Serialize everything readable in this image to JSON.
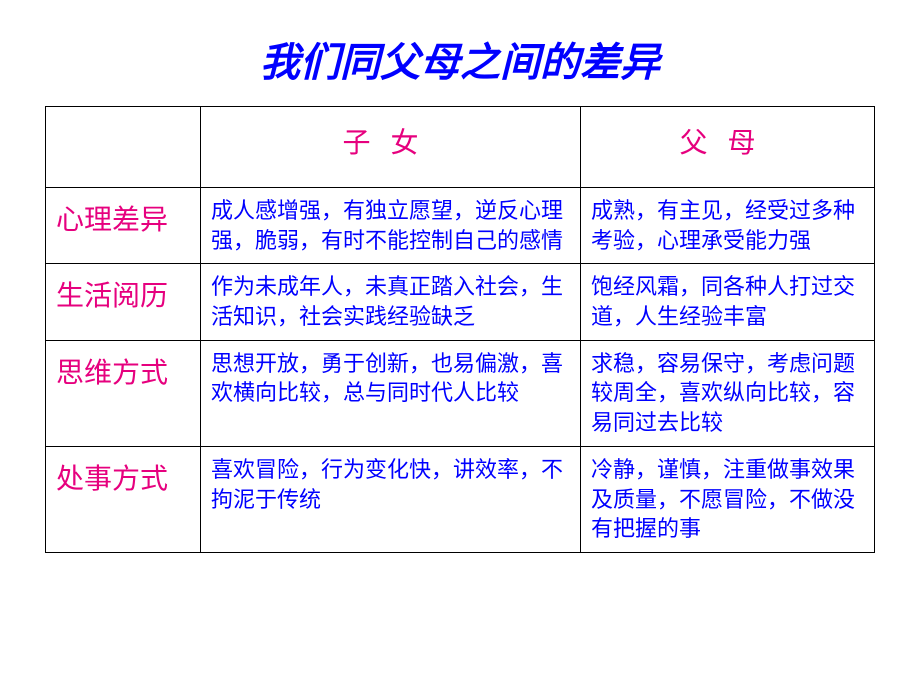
{
  "title": "我们同父母之间的差异",
  "colors": {
    "title": "#0000ff",
    "header": "#e6007e",
    "row_label": "#e6007e",
    "cell_text": "#0000ff",
    "border": "#000000",
    "background": "#ffffff"
  },
  "fonts": {
    "title_size": 40,
    "header_size": 28,
    "row_label_size": 28,
    "cell_size": 22,
    "family": "KaiTi"
  },
  "table": {
    "headers": {
      "blank": "",
      "child": "子女",
      "parent": "父母"
    },
    "rows": [
      {
        "label": "心理差异",
        "child": "成人感增强，有独立愿望，逆反心理强，脆弱，有时不能控制自己的感情",
        "parent": "成熟，有主见，经受过多种考验，心理承受能力强"
      },
      {
        "label": "生活阅历",
        "child": "作为未成年人，未真正踏入社会，生活知识，社会实践经验缺乏",
        "parent": "饱经风霜，同各种人打过交道，人生经验丰富"
      },
      {
        "label": "思维方式",
        "child": "思想开放，勇于创新，也易偏激，喜欢横向比较，总与同时代人比较",
        "parent": "求稳，容易保守，考虑问题较周全，喜欢纵向比较，容易同过去比较"
      },
      {
        "label": "处事方式",
        "child": "喜欢冒险，行为变化快，讲效率，不拘泥于传统",
        "parent": "冷静，谨慎，注重做事效果及质量，不愿冒险，不做没有把握的事"
      }
    ]
  }
}
